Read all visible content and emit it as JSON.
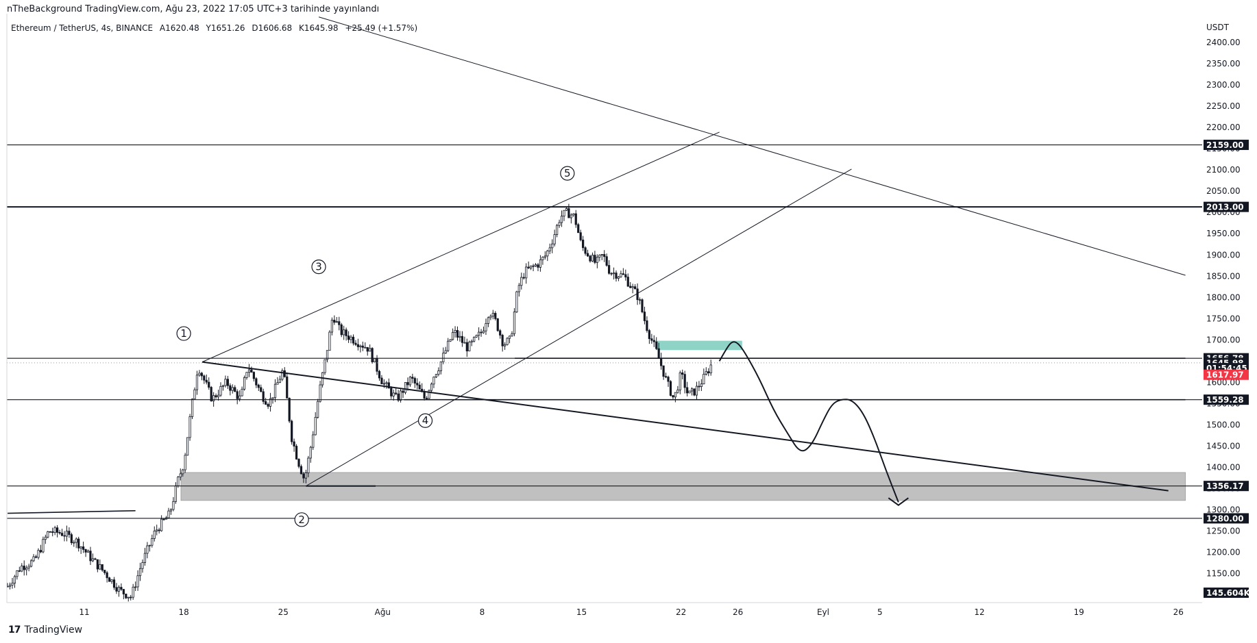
{
  "header": {
    "publish_text": "nTheBackground TradingView.com, Ağu 23, 2022 17:05 UTC+3 tarihinde yayınlandı",
    "symbol": "Ethereum / TetherUS, 4s, BINANCE",
    "open": "A1620.48",
    "high": "Y1651.26",
    "low": "D1606.68",
    "close": "K1645.98",
    "change": "+25.49 (+1.57%)"
  },
  "brand": {
    "logo": "17",
    "name": "TradingView"
  },
  "chart_data": {
    "type": "candlestick",
    "currency": "USDT",
    "ylim": [
      1080,
      2430
    ],
    "y_ticks": [
      1100,
      1150,
      1200,
      1250,
      1300,
      1350,
      1400,
      1450,
      1500,
      1550,
      1600,
      1650,
      1700,
      1750,
      1800,
      1850,
      1900,
      1950,
      2000,
      2050,
      2100,
      2150,
      2200,
      2250,
      2300,
      2350,
      2400
    ],
    "x_ticks": [
      {
        "label": "11",
        "day": 11
      },
      {
        "label": "18",
        "day": 18
      },
      {
        "label": "25",
        "day": 25
      },
      {
        "label": "Ağu",
        "day": 32
      },
      {
        "label": "8",
        "day": 39
      },
      {
        "label": "15",
        "day": 46
      },
      {
        "label": "22",
        "day": 53
      },
      {
        "label": "26",
        "day": 57
      },
      {
        "label": "Eyl",
        "day": 63
      },
      {
        "label": "5",
        "day": 67
      },
      {
        "label": "12",
        "day": 74
      },
      {
        "label": "19",
        "day": 81
      },
      {
        "label": "26",
        "day": 88
      }
    ],
    "x_day_range": [
      5.6,
      88.5
    ],
    "price_path": [
      [
        5.6,
        1120
      ],
      [
        6.5,
        1165
      ],
      [
        7.5,
        1180
      ],
      [
        8.5,
        1250
      ],
      [
        9.5,
        1245
      ],
      [
        10.5,
        1225
      ],
      [
        11.5,
        1185
      ],
      [
        12.5,
        1150
      ],
      [
        13.5,
        1110
      ],
      [
        14.3,
        1095
      ],
      [
        15,
        1170
      ],
      [
        16,
        1250
      ],
      [
        17,
        1290
      ],
      [
        17.6,
        1370
      ],
      [
        18,
        1410
      ],
      [
        18.5,
        1530
      ],
      [
        19,
        1640
      ],
      [
        20,
        1560
      ],
      [
        21,
        1600
      ],
      [
        22,
        1560
      ],
      [
        22.5,
        1640
      ],
      [
        23.5,
        1570
      ],
      [
        24,
        1550
      ],
      [
        25,
        1630
      ],
      [
        25.6,
        1470
      ],
      [
        26,
        1420
      ],
      [
        26.5,
        1370
      ],
      [
        27,
        1460
      ],
      [
        27.5,
        1570
      ],
      [
        28,
        1660
      ],
      [
        28.5,
        1760
      ],
      [
        29,
        1720
      ],
      [
        30,
        1700
      ],
      [
        31,
        1680
      ],
      [
        32,
        1600
      ],
      [
        33,
        1560
      ],
      [
        34,
        1610
      ],
      [
        35,
        1560
      ],
      [
        35.5,
        1610
      ],
      [
        36,
        1640
      ],
      [
        37,
        1720
      ],
      [
        38,
        1680
      ],
      [
        39,
        1720
      ],
      [
        39.5,
        1770
      ],
      [
        40,
        1740
      ],
      [
        40.5,
        1690
      ],
      [
        41,
        1700
      ],
      [
        41.5,
        1820
      ],
      [
        42,
        1860
      ],
      [
        43,
        1880
      ],
      [
        43.5,
        1900
      ],
      [
        44,
        1940
      ],
      [
        44.5,
        1990
      ],
      [
        45,
        2000
      ],
      [
        45.5,
        1990
      ],
      [
        46,
        1920
      ],
      [
        47,
        1880
      ],
      [
        47.5,
        1900
      ],
      [
        48,
        1860
      ],
      [
        49,
        1850
      ],
      [
        50,
        1800
      ],
      [
        50.4,
        1750
      ],
      [
        50.8,
        1710
      ],
      [
        51.3,
        1670
      ],
      [
        52,
        1600
      ],
      [
        52.5,
        1560
      ],
      [
        53,
        1620
      ],
      [
        53.5,
        1570
      ],
      [
        54,
        1580
      ],
      [
        54.6,
        1610
      ],
      [
        55.2,
        1646
      ]
    ],
    "horizontal_levels": [
      {
        "price": 2159.0,
        "label": "2159.00",
        "style": "thin"
      },
      {
        "price": 2013.0,
        "label": "2013.00",
        "style": "thick"
      },
      {
        "price": 1656.78,
        "label": "1656.78",
        "style": "thin"
      },
      {
        "price": 1559.28,
        "label": "1559.28",
        "style": "thin"
      },
      {
        "price": 1356.17,
        "label": "1356.17",
        "style": "thin"
      },
      {
        "price": 1280.0,
        "label": "1280.00",
        "style": "thin"
      }
    ],
    "price_tags": [
      {
        "price": 1645.98,
        "label": "1645.98",
        "color": "#131722"
      },
      {
        "price": 1633.5,
        "label": "01:54:45",
        "color": "#131722"
      },
      {
        "price": 1617.97,
        "label": "1617.97",
        "color": "#f23645"
      },
      {
        "price": 1105,
        "label": "145.604K",
        "color": "#131722"
      }
    ],
    "last_price": 1645.98,
    "demand_zone": {
      "from_day": 17.8,
      "to_day": 88.5,
      "low": 1322,
      "high": 1388,
      "color": "#c0c0c0"
    },
    "supply_zone": {
      "from_day": 51.3,
      "to_day": 57.3,
      "low": 1676,
      "high": 1698,
      "color": "#8fd3c7"
    },
    "trendlines": [
      {
        "from": [
          5.6,
          1292
        ],
        "to": [
          14.6,
          1298
        ],
        "width": 1.6
      },
      {
        "from": [
          19.3,
          1648
        ],
        "to": [
          87.3,
          1345
        ],
        "width": 2
      },
      {
        "from": [
          19.3,
          1648
        ],
        "to": [
          55.7,
          2189
        ],
        "width": 1
      },
      {
        "from": [
          26.6,
          1356
        ],
        "to": [
          65,
          2102
        ],
        "width": 1
      },
      {
        "from": [
          27.5,
          2460
        ],
        "to": [
          88.5,
          1852
        ],
        "width": 1
      },
      {
        "from": [
          26.6,
          1356
        ],
        "to": [
          31.5,
          1356
        ],
        "width": 2
      },
      {
        "from": [
          41.3,
          1656.78
        ],
        "to": [
          88.5,
          1656.78
        ],
        "width": 1.6
      },
      {
        "from": [
          33.5,
          1559.28
        ],
        "to": [
          88.5,
          1559.28
        ],
        "width": 1.6
      }
    ],
    "projection_path": [
      [
        55.7,
        1650
      ],
      [
        56.2,
        1680
      ],
      [
        56.6,
        1697
      ],
      [
        57,
        1693
      ],
      [
        57.5,
        1670
      ],
      [
        58.5,
        1610
      ],
      [
        59.5,
        1535
      ],
      [
        60.5,
        1480
      ],
      [
        61.4,
        1432
      ],
      [
        62.2,
        1452
      ],
      [
        63,
        1510
      ],
      [
        63.6,
        1548
      ],
      [
        64.2,
        1560
      ],
      [
        65,
        1560
      ],
      [
        65.8,
        1530
      ],
      [
        66.6,
        1470
      ],
      [
        67.4,
        1395
      ],
      [
        68.3,
        1318
      ]
    ],
    "projection_arrowhead": [
      [
        67.6,
        1328
      ],
      [
        68.3,
        1311
      ],
      [
        69,
        1328
      ]
    ],
    "wave_labels": [
      {
        "label": "1",
        "day": 18.0,
        "price": 1715
      },
      {
        "label": "2",
        "day": 26.3,
        "price": 1277
      },
      {
        "label": "3",
        "day": 27.5,
        "price": 1872
      },
      {
        "label": "4",
        "day": 35.0,
        "price": 1510
      },
      {
        "label": "5",
        "day": 45.0,
        "price": 2092
      }
    ]
  }
}
